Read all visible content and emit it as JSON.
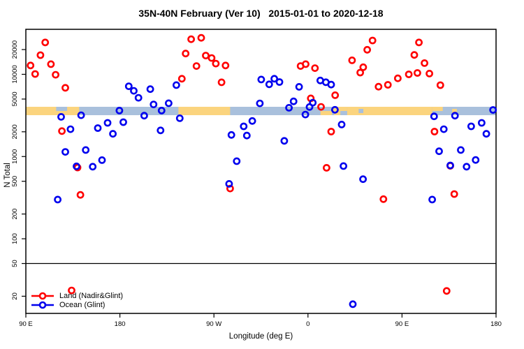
{
  "title": "35N-40N February (Ver 10)   2015-01-01 to 2020-12-18",
  "legend": {
    "items": [
      {
        "label": "Land (Nadir&Glint)",
        "color": "#ff0000"
      },
      {
        "label": "Ocean (Glint)",
        "color": "#0000ee"
      }
    ]
  },
  "chart_data": {
    "type": "scatter",
    "title": "35N-40N February (Ver 10)   2015-01-01 to 2020-12-18",
    "xlabel": "Longitude (deg E)",
    "ylabel": "N Total",
    "x_axis": {
      "range_deg": [
        90,
        540
      ],
      "ticks": [
        {
          "value": 90,
          "label": "90 E"
        },
        {
          "value": 180,
          "label": "180"
        },
        {
          "value": 270,
          "label": "90 W"
        },
        {
          "value": 360,
          "label": "0"
        },
        {
          "value": 450,
          "label": "90 E"
        },
        {
          "value": 540,
          "label": "180"
        }
      ]
    },
    "y_axis": {
      "scale": "log",
      "range": [
        12,
        35000
      ],
      "ticks": [
        20,
        50,
        100,
        200,
        500,
        1000,
        2000,
        5000,
        10000,
        20000
      ]
    },
    "reference_line": {
      "y": 50
    },
    "map_band": {
      "value_range": [
        3200,
        4000
      ],
      "ocean_color": "#a9c0dc",
      "land_color": "#fbd47e",
      "segments": [
        {
          "from": 90,
          "to": 119,
          "kind": "land",
          "part": "full"
        },
        {
          "from": 119,
          "to": 129.5,
          "kind": "land",
          "part": "bottom"
        },
        {
          "from": 129.5,
          "to": 141,
          "kind": "land",
          "part": "full"
        },
        {
          "from": 236,
          "to": 285.5,
          "kind": "land",
          "part": "full"
        },
        {
          "from": 372,
          "to": 383,
          "kind": "land",
          "part": "bottom"
        },
        {
          "from": 383,
          "to": 397.5,
          "kind": "land",
          "part": "top"
        },
        {
          "from": 385,
          "to": 391,
          "kind": "land",
          "part": "bottom"
        },
        {
          "from": 397.5,
          "to": 479,
          "kind": "land",
          "part": "full"
        },
        {
          "from": 408.5,
          "to": 413,
          "kind": "water",
          "part": "middle"
        },
        {
          "from": 479,
          "to": 489,
          "kind": "land",
          "part": "top"
        },
        {
          "from": 498,
          "to": 502.5,
          "kind": "land",
          "part": "middle"
        }
      ]
    },
    "series": [
      {
        "name": "Land (Nadir&Glint)",
        "color": "#ff0000",
        "points": [
          [
            108.5,
            24400
          ],
          [
            104.0,
            17100
          ],
          [
            94.5,
            12800
          ],
          [
            114.0,
            13300
          ],
          [
            98.9,
            10100
          ],
          [
            118.5,
            9870
          ],
          [
            127.8,
            6850
          ],
          [
            124.5,
            2040
          ],
          [
            139.5,
            735
          ],
          [
            142.2,
            342
          ],
          [
            133.8,
            23.5
          ],
          [
            242.9,
            17900
          ],
          [
            248.2,
            26700
          ],
          [
            257.8,
            27800
          ],
          [
            262.2,
            16900
          ],
          [
            267.8,
            15800
          ],
          [
            253.3,
            12600
          ],
          [
            271.8,
            13500
          ],
          [
            281.1,
            12800
          ],
          [
            239.3,
            8830
          ],
          [
            277.3,
            8000
          ],
          [
            285.5,
            408
          ],
          [
            352.9,
            12600
          ],
          [
            357.8,
            13300
          ],
          [
            366.7,
            11900
          ],
          [
            362.7,
            5100
          ],
          [
            372.5,
            4020
          ],
          [
            386.0,
            5570
          ],
          [
            382.2,
            2010
          ],
          [
            377.8,
            730
          ],
          [
            402.2,
            14800
          ],
          [
            412.9,
            12200
          ],
          [
            410.0,
            10500
          ],
          [
            416.7,
            19900
          ],
          [
            421.8,
            25800
          ],
          [
            427.5,
            7070
          ],
          [
            436.5,
            7450
          ],
          [
            446.0,
            8940
          ],
          [
            456.5,
            10000
          ],
          [
            464.7,
            10400
          ],
          [
            466.2,
            24400
          ],
          [
            461.8,
            17200
          ],
          [
            471.5,
            13700
          ],
          [
            476.2,
            10200
          ],
          [
            486.7,
            7380
          ],
          [
            481.1,
            2010
          ],
          [
            496.2,
            770
          ],
          [
            500.0,
            350
          ],
          [
            432.2,
            303
          ],
          [
            492.7,
            23.2
          ]
        ]
      },
      {
        "name": "Ocean (Glint)",
        "color": "#0000ee",
        "points": [
          [
            188.5,
            7150
          ],
          [
            193.3,
            6300
          ],
          [
            197.8,
            5180
          ],
          [
            209.1,
            6600
          ],
          [
            212.2,
            4300
          ],
          [
            226.7,
            4450
          ],
          [
            234.0,
            7400
          ],
          [
            219.9,
            3620
          ],
          [
            179.5,
            3620
          ],
          [
            123.8,
            3040
          ],
          [
            142.9,
            3180
          ],
          [
            132.7,
            2150
          ],
          [
            158.9,
            2220
          ],
          [
            168.2,
            2570
          ],
          [
            173.3,
            1890
          ],
          [
            183.3,
            2620
          ],
          [
            203.3,
            3140
          ],
          [
            218.9,
            2080
          ],
          [
            237.3,
            2920
          ],
          [
            127.8,
            1140
          ],
          [
            147.3,
            1200
          ],
          [
            138.5,
            760
          ],
          [
            154.0,
            752
          ],
          [
            162.9,
            905
          ],
          [
            291.8,
            878
          ],
          [
            286.7,
            1830
          ],
          [
            298.5,
            2330
          ],
          [
            301.5,
            1800
          ],
          [
            306.7,
            2710
          ],
          [
            313.9,
            4430
          ],
          [
            120.5,
            300
          ],
          [
            284.5,
            465
          ],
          [
            412.7,
            530
          ],
          [
            478.9,
            300
          ],
          [
            402.9,
            16
          ],
          [
            315.3,
            8650
          ],
          [
            322.9,
            7560
          ],
          [
            327.8,
            8830
          ],
          [
            332.7,
            8060
          ],
          [
            351.5,
            7040
          ],
          [
            371.8,
            8420
          ],
          [
            377.1,
            8010
          ],
          [
            382.2,
            7500
          ],
          [
            346.2,
            4690
          ],
          [
            341.8,
            3920
          ],
          [
            364.6,
            4520
          ],
          [
            361.5,
            4000
          ],
          [
            357.5,
            3240
          ],
          [
            385.8,
            3700
          ],
          [
            392.2,
            2450
          ],
          [
            337.3,
            1550
          ],
          [
            394.0,
            766
          ],
          [
            480.7,
            3080
          ],
          [
            500.7,
            3140
          ],
          [
            490.0,
            2150
          ],
          [
            516.2,
            2330
          ],
          [
            526.2,
            2570
          ],
          [
            530.7,
            1890
          ],
          [
            485.5,
            1160
          ],
          [
            506.2,
            1200
          ],
          [
            496.2,
            780
          ],
          [
            511.8,
            752
          ],
          [
            520.5,
            908
          ],
          [
            537.1,
            3690
          ]
        ]
      }
    ]
  }
}
